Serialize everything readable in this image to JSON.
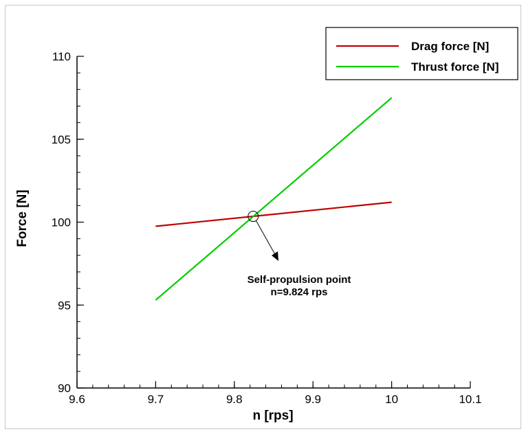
{
  "chart_data": {
    "type": "line",
    "xlabel": "n [rps]",
    "ylabel": "Force [N]",
    "xlim": [
      9.6,
      10.1
    ],
    "ylim": [
      90,
      110
    ],
    "x_ticks": [
      "9.6",
      "9.7",
      "9.8",
      "9.9",
      "10",
      "10.1"
    ],
    "y_ticks": [
      "90",
      "95",
      "100",
      "105",
      "110"
    ],
    "grid": false,
    "legend_position": "top-right",
    "series": [
      {
        "name": "Drag force [N]",
        "color": "#c00000",
        "x": [
          9.7,
          10.0
        ],
        "y": [
          99.75,
          101.2
        ]
      },
      {
        "name": "Thrust force [N]",
        "color": "#00cc00",
        "x": [
          9.7,
          10.0
        ],
        "y": [
          95.3,
          107.5
        ]
      }
    ],
    "annotation": {
      "lines": [
        "Self-propulsion point",
        "n=9.824 rps"
      ],
      "point": {
        "x": 9.824,
        "y": 100.35
      }
    }
  }
}
